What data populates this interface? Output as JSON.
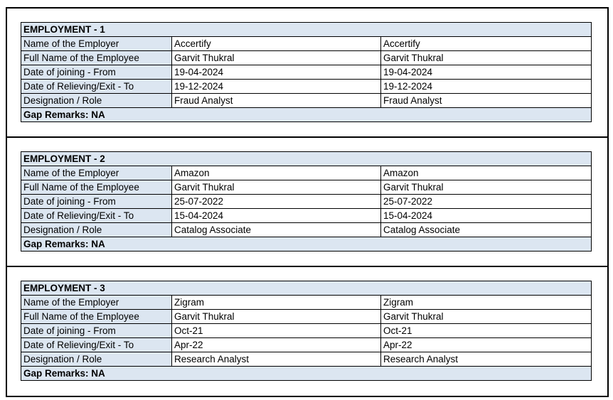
{
  "labels": [
    "Name of the Employer",
    "Full Name of the Employee",
    "Date of joining - From",
    "Date of Relieving/Exit - To",
    "Designation / Role"
  ],
  "employments": [
    {
      "title": "EMPLOYMENT - 1",
      "values": [
        [
          "Accertify",
          "Accertify"
        ],
        [
          "Garvit Thukral",
          "Garvit Thukral"
        ],
        [
          "19-04-2024",
          "19-04-2024"
        ],
        [
          "19-12-2024",
          "19-12-2024"
        ],
        [
          "Fraud Analyst",
          "Fraud Analyst"
        ]
      ],
      "gap_remarks": "Gap Remarks: NA"
    },
    {
      "title": "EMPLOYMENT - 2",
      "values": [
        [
          "Amazon",
          "Amazon"
        ],
        [
          "Garvit Thukral",
          "Garvit Thukral"
        ],
        [
          "25-07-2022",
          "25-07-2022"
        ],
        [
          "15-04-2024",
          "15-04-2024"
        ],
        [
          "Catalog Associate",
          "Catalog Associate"
        ]
      ],
      "gap_remarks": "Gap Remarks: NA"
    },
    {
      "title": "EMPLOYMENT - 3",
      "values": [
        [
          "Zigram",
          "Zigram"
        ],
        [
          "Garvit Thukral",
          "Garvit Thukral"
        ],
        [
          "Oct-21",
          "Oct-21"
        ],
        [
          "Apr-22",
          "Apr-22"
        ],
        [
          "Research Analyst",
          "Research Analyst"
        ]
      ],
      "gap_remarks": "Gap Remarks: NA"
    }
  ]
}
